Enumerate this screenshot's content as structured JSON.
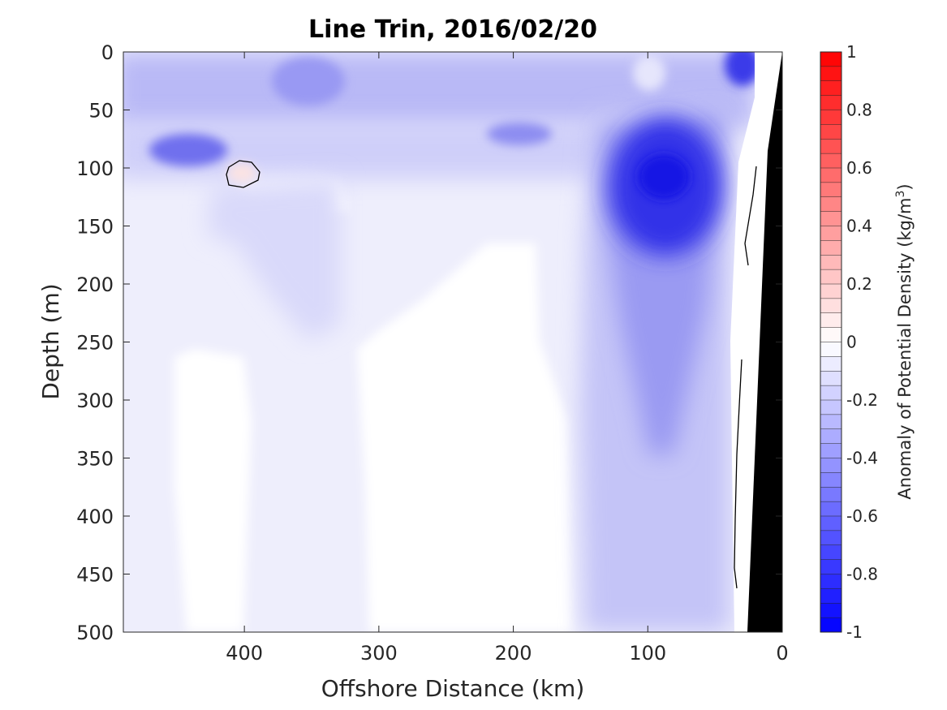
{
  "chart_data": {
    "type": "heatmap",
    "title": "Line Trin, 2016/02/20",
    "xlabel": "Offshore Distance (km)",
    "ylabel": "Depth (m)",
    "xlim": [
      490,
      0
    ],
    "ylim": [
      0,
      500
    ],
    "x_reversed": true,
    "y_reversed": true,
    "x_ticks": [
      "400",
      "300",
      "200",
      "100",
      "0"
    ],
    "y_ticks": [
      "0",
      "50",
      "100",
      "150",
      "200",
      "250",
      "300",
      "350",
      "400",
      "450",
      "500"
    ],
    "colorbar": {
      "label_main": "Anomaly of Potential Density (kg/m",
      "label_sup": "3",
      "label_close": ")",
      "range": [
        -1,
        1
      ],
      "ticks": [
        "1",
        "0.8",
        "0.6",
        "0.4",
        "0.2",
        "0",
        "-0.2",
        "-0.4",
        "-0.6",
        "-0.8",
        "-1"
      ],
      "levels": 40,
      "colormap": "blue-white-red",
      "neg_color": "#0000ff",
      "zero_color": "#ffffff",
      "pos_color": "#ff0000"
    },
    "shelf_color": "#000000",
    "anomaly_features": [
      {
        "name": "surface layer",
        "x_range": [
          490,
          20
        ],
        "depth_range": [
          0,
          60
        ],
        "value": -0.3
      },
      {
        "name": "pycnocline band",
        "x_range": [
          490,
          150
        ],
        "depth_range": [
          60,
          150
        ],
        "value": -0.35
      },
      {
        "name": "western lens",
        "x": 440,
        "depth": 85,
        "value": -0.6
      },
      {
        "name": "positive core",
        "x": 400,
        "depth": 100,
        "value": 0.05
      },
      {
        "name": "coastal core",
        "x": 88,
        "depth": 110,
        "value": -0.9
      },
      {
        "name": "inshore surface core",
        "x": 25,
        "depth": 8,
        "value": -0.8
      },
      {
        "name": "deep tongue",
        "x": 90,
        "depth": 320,
        "value": -0.25
      },
      {
        "name": "offshore deep band",
        "x_range": [
          400,
          300
        ],
        "depth_range": [
          150,
          500
        ],
        "value": -0.1
      }
    ]
  }
}
